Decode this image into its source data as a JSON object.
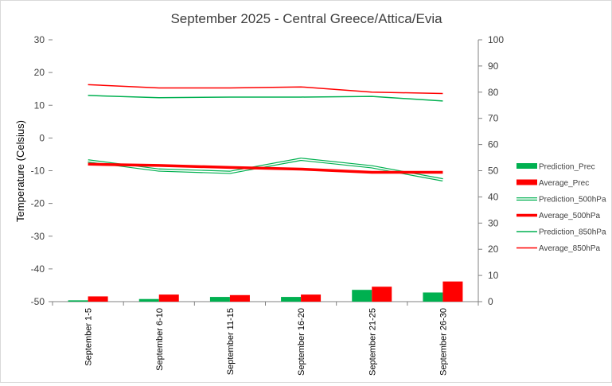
{
  "chart_data": {
    "type": "bar",
    "title": "September 2025 - Central Greece/Attica/Evia",
    "ylabel": "Temperature (Celsius)",
    "y2label": "",
    "ylim": [
      -50,
      30
    ],
    "y2lim": [
      0,
      100
    ],
    "yticks": [
      "30",
      "20",
      "10",
      "0",
      "-10",
      "-20",
      "-30",
      "-40",
      "-50"
    ],
    "y2ticks": [
      "100",
      "90",
      "80",
      "70",
      "60",
      "50",
      "40",
      "30",
      "20",
      "10",
      "0"
    ],
    "categories": [
      "September 1-5",
      "September 6-10",
      "September 11-15",
      "September 16-20",
      "September 21-25",
      "September 26-30"
    ],
    "legend_position": "right",
    "grid": false,
    "series": [
      {
        "name": "Prediction_Prec",
        "kind": "bar",
        "axis": "right",
        "color": "#00b050",
        "values": [
          0.5,
          1.0,
          1.8,
          1.8,
          4.5,
          3.5
        ]
      },
      {
        "name": "Average_Prec",
        "kind": "bar",
        "axis": "right",
        "color": "#ff0000",
        "values": [
          2.0,
          2.7,
          2.5,
          2.7,
          5.7,
          7.7
        ]
      },
      {
        "name": "Prediction_500hPa",
        "kind": "double-line",
        "axis": "left",
        "color": "#00b050",
        "values": [
          -7.0,
          -9.8,
          -10.5,
          -6.5,
          -8.8,
          -12.8
        ]
      },
      {
        "name": "Average_500hPa",
        "kind": "thick-line",
        "axis": "left",
        "color": "#ff0000",
        "values": [
          -8.0,
          -8.4,
          -9.0,
          -9.5,
          -10.5,
          -10.5
        ]
      },
      {
        "name": "Prediction_850hPa",
        "kind": "line",
        "axis": "left",
        "color": "#00b050",
        "values": [
          13.0,
          12.3,
          12.5,
          12.5,
          12.7,
          11.3
        ]
      },
      {
        "name": "Average_850hPa",
        "kind": "line",
        "axis": "left",
        "color": "#ff0000",
        "values": [
          16.3,
          15.3,
          15.3,
          15.6,
          14.0,
          13.6
        ]
      }
    ]
  }
}
